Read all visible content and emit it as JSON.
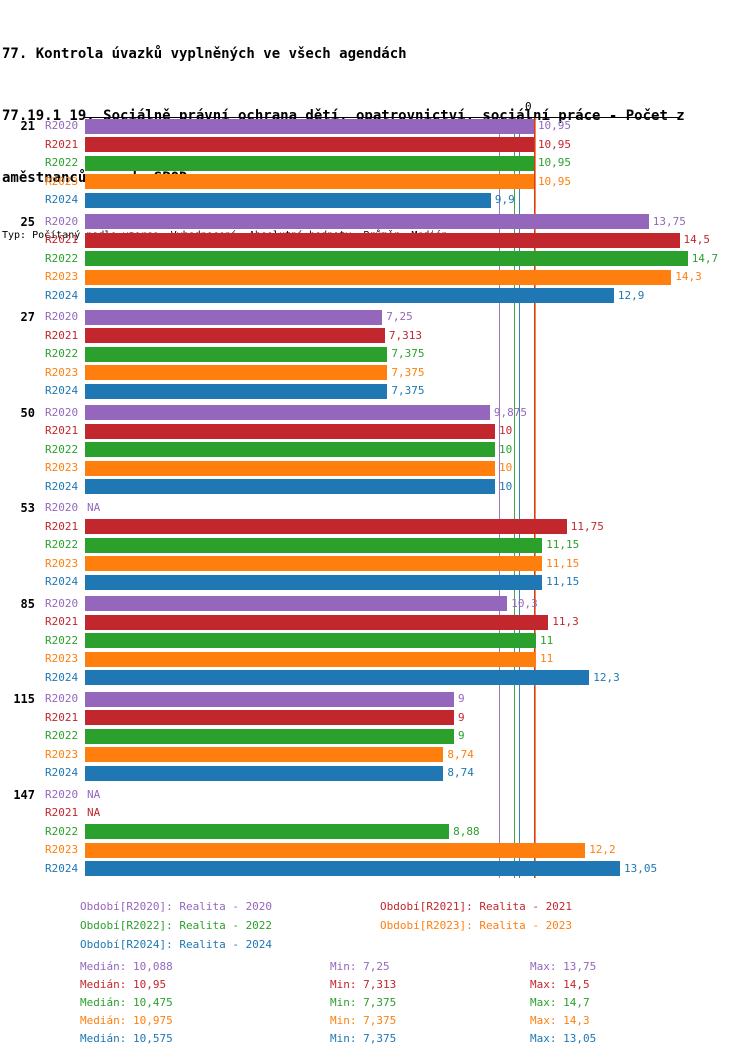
{
  "header": {
    "line1": "77. Kontrola úvazků vyplněných ve všech agendách",
    "line2": "77.19.1 19. Sociálně právní ochrana dětí, opatrovnictví, sociální práce - Počet z",
    "line3": "aměstnanců agendy SPOD",
    "meta": "Typ: Počítaný podle vzorce, Vyhodnocení: Absolutní hodnoty, Průměr: Medián"
  },
  "chart_data": {
    "type": "bar",
    "orientation": "horizontal",
    "title": "77. Kontrola úvazků vyplněných ve všech agendách — 77.19.1 19. Sociálně právní ochrana dětí, opatrovnictví, sociální práce - Počet zaměstnanců agendy SPOD",
    "axis_zero_label": "0",
    "xlim": [
      0,
      15
    ],
    "categories": [
      "21",
      "25",
      "27",
      "50",
      "53",
      "85",
      "115",
      "147"
    ],
    "series": [
      {
        "name": "R2020",
        "color": "#9467bd",
        "values": [
          10.95,
          13.75,
          7.25,
          9.875,
          null,
          10.3,
          9,
          null
        ],
        "display": [
          "10,95",
          "13,75",
          "7,25",
          "9,875",
          "NA",
          "10,3",
          "9",
          "NA"
        ],
        "median": 10.088
      },
      {
        "name": "R2021",
        "color": "#c1272d",
        "values": [
          10.95,
          14.5,
          7.313,
          10,
          11.75,
          11.3,
          9,
          null
        ],
        "display": [
          "10,95",
          "14,5",
          "7,313",
          "10",
          "11,75",
          "11,3",
          "9",
          "NA"
        ],
        "median": 10.95
      },
      {
        "name": "R2022",
        "color": "#2ca02c",
        "values": [
          10.95,
          14.7,
          7.375,
          10,
          11.15,
          11,
          9,
          8.88
        ],
        "display": [
          "10,95",
          "14,7",
          "7,375",
          "10",
          "11,15",
          "11",
          "9",
          "8,88"
        ],
        "median": 10.475
      },
      {
        "name": "R2023",
        "color": "#ff7f0e",
        "values": [
          10.95,
          14.3,
          7.375,
          10,
          11.15,
          11,
          8.74,
          12.2
        ],
        "display": [
          "10,95",
          "14,3",
          "7,375",
          "10",
          "11,15",
          "11",
          "8,74",
          "12,2"
        ],
        "median": 10.975
      },
      {
        "name": "R2024",
        "color": "#1f77b4",
        "values": [
          9.9,
          12.9,
          7.375,
          10,
          11.15,
          12.3,
          8.74,
          13.05
        ],
        "display": [
          "9,9",
          "12,9",
          "7,375",
          "10",
          "11,15",
          "12,3",
          "8,74",
          "13,05"
        ],
        "median": 10.575
      }
    ]
  },
  "legend": [
    {
      "label": "Období[R2020]: Realita - 2020",
      "color": "#9467bd"
    },
    {
      "label": "Období[R2021]: Realita - 2021",
      "color": "#c1272d"
    },
    {
      "label": "Období[R2022]: Realita - 2022",
      "color": "#2ca02c"
    },
    {
      "label": "Období[R2023]: Realita - 2023",
      "color": "#ff7f0e"
    },
    {
      "label": "Období[R2024]: Realita - 2024",
      "color": "#1f77b4"
    }
  ],
  "stats": [
    {
      "color": "#9467bd",
      "median": "Medián: 10,088",
      "min": "Min: 7,25",
      "max": "Max: 13,75"
    },
    {
      "color": "#c1272d",
      "median": "Medián: 10,95",
      "min": "Min: 7,313",
      "max": "Max: 14,5"
    },
    {
      "color": "#2ca02c",
      "median": "Medián: 10,475",
      "min": "Min: 7,375",
      "max": "Max: 14,7"
    },
    {
      "color": "#ff7f0e",
      "median": "Medián: 10,975",
      "min": "Min: 7,375",
      "max": "Max: 14,3"
    },
    {
      "color": "#1f77b4",
      "median": "Medián: 10,575",
      "min": "Min: 7,375",
      "max": "Max: 13,05"
    }
  ]
}
